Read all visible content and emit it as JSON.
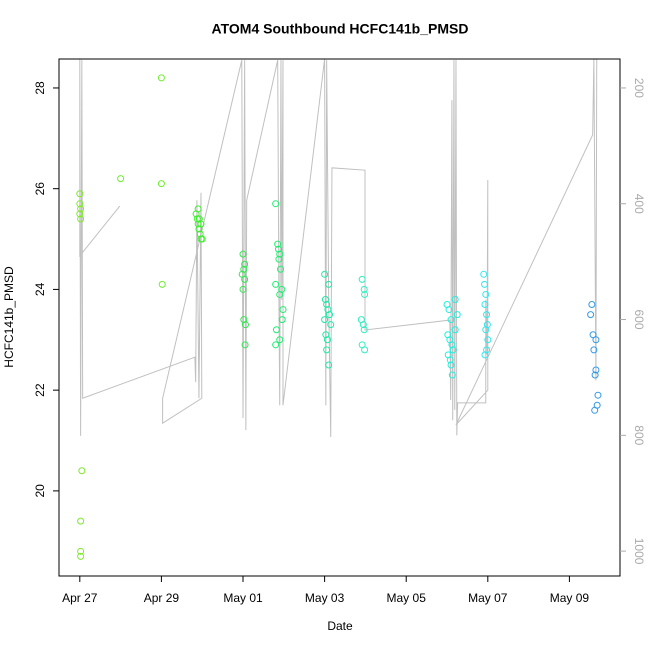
{
  "chart_data": {
    "type": "scatter",
    "title": "ATOM4 Southbound HCFC141b_PMSD",
    "x_label": "Date",
    "y_label": "HCFC141b_PMSD",
    "xlim": [
      26.49,
      40.24
    ],
    "ylim": [
      18.31,
      28.575
    ],
    "y2lim": [
      1043,
      150
    ],
    "xticks": [
      {
        "value": 27,
        "label": "Apr 27"
      },
      {
        "value": 29,
        "label": "Apr 29"
      },
      {
        "value": 31,
        "label": "May 01"
      },
      {
        "value": 33,
        "label": "May 03"
      },
      {
        "value": 35,
        "label": "May 05"
      },
      {
        "value": 37,
        "label": "May 07"
      },
      {
        "value": 39,
        "label": "May 09"
      }
    ],
    "yticks": [
      20,
      22,
      24,
      26,
      28
    ],
    "y2ticks": [
      200,
      400,
      600,
      800,
      1000
    ],
    "series": [
      {
        "color": "#80e830",
        "x": [
          27.0,
          27.0,
          27.02,
          27.0,
          27.02,
          27.05,
          27.02,
          27.02,
          27.02
        ],
        "values": [
          25.9,
          25.7,
          25.6,
          25.5,
          25.4,
          20.4,
          19.4,
          18.8,
          18.7
        ]
      },
      {
        "color": "#70ee30",
        "x": [
          28.0,
          29.0,
          29.0,
          29.02
        ],
        "values": [
          26.2,
          28.2,
          26.1,
          24.1
        ]
      },
      {
        "color": "#40ee30",
        "x": [
          29.85,
          29.88,
          29.9,
          29.92,
          29.95,
          29.97,
          29.9,
          29.93,
          29.97,
          30.0
        ],
        "values": [
          25.5,
          25.4,
          25.3,
          25.2,
          25.1,
          25.0,
          25.6,
          25.4,
          25.3,
          25.0
        ]
      },
      {
        "color": "#30e850",
        "x": [
          31.0,
          31.02,
          30.98,
          31.04,
          31.0,
          31.02,
          31.06,
          31.05,
          31.04
        ],
        "values": [
          24.7,
          24.4,
          24.3,
          24.2,
          24.0,
          23.4,
          23.3,
          22.9,
          24.5
        ]
      },
      {
        "color": "#20ee70",
        "x": [
          31.8,
          31.85,
          31.87,
          31.9,
          31.88,
          31.92,
          31.8,
          31.95,
          31.9,
          31.98,
          31.96,
          31.82,
          31.9,
          31.8
        ],
        "values": [
          25.7,
          24.9,
          24.8,
          24.7,
          24.6,
          24.4,
          24.1,
          24.0,
          23.9,
          23.6,
          23.4,
          23.2,
          23.0,
          22.9
        ]
      },
      {
        "color": "#20e8a8",
        "x": [
          33.0,
          33.1,
          33.02,
          33.05,
          33.08,
          33.12,
          33.0,
          33.15,
          33.03,
          33.07,
          33.05,
          33.1
        ],
        "values": [
          24.3,
          24.1,
          23.8,
          23.7,
          23.6,
          23.5,
          23.4,
          23.3,
          23.1,
          23.0,
          22.8,
          22.5
        ]
      },
      {
        "color": "#30eec0",
        "x": [
          33.92,
          33.97,
          33.98,
          33.9,
          33.95,
          33.97,
          33.92,
          33.98
        ],
        "values": [
          24.2,
          24.0,
          23.9,
          23.4,
          23.3,
          23.2,
          22.9,
          22.8
        ]
      },
      {
        "color": "#20f0e0",
        "x": [
          36.0,
          36.05,
          36.1,
          36.02,
          36.07,
          36.12,
          36.15,
          36.03,
          36.08,
          36.1,
          36.13,
          36.2,
          36.25,
          36.2
        ],
        "values": [
          23.7,
          23.6,
          23.4,
          23.1,
          23.0,
          22.9,
          22.8,
          22.7,
          22.6,
          22.5,
          22.3,
          23.8,
          23.5,
          23.2
        ]
      },
      {
        "color": "#30e8f0",
        "x": [
          36.9,
          36.92,
          36.95,
          36.93,
          36.97,
          36.99,
          36.95,
          37.0,
          36.97,
          36.93
        ],
        "values": [
          24.3,
          24.1,
          23.9,
          23.7,
          23.5,
          23.3,
          23.2,
          23.0,
          22.8,
          22.7
        ]
      },
      {
        "color": "#3399e8",
        "x": [
          39.55,
          39.52,
          39.58,
          39.65,
          39.6,
          39.65,
          39.63,
          39.7,
          39.68,
          39.62
        ],
        "values": [
          23.7,
          23.5,
          23.1,
          23.0,
          22.8,
          22.4,
          22.3,
          21.9,
          21.7,
          21.6
        ]
      },
      {
        "type": "line",
        "axis": "y2",
        "color": "#c0c0c0",
        "x": [
          27.98,
          27.0,
          27.0,
          27.02,
          27.05,
          27.07,
          29.82,
          29.84,
          29.87,
          29.92,
          29.97,
          29.99,
          29.03,
          29.03,
          30.97,
          31.0,
          31.04,
          31.07,
          31.09,
          31.85,
          31.88,
          31.9,
          31.93,
          31.95,
          31.98,
          31.98,
          33.0,
          33.03,
          33.05,
          33.1,
          33.15,
          33.18,
          33.99,
          33.99,
          36.07,
          36.09,
          36.12,
          36.14,
          36.17,
          36.19,
          36.22,
          36.24,
          36.26,
          36.95,
          36.95,
          36.98,
          37.0,
          37.0,
          36.22,
          39.57,
          39.6,
          39.65,
          39.67
        ],
        "values": [
          404,
          490,
          150,
          801,
          152,
          736,
          665,
          708,
          394,
          736,
          381,
          736,
          779,
          736,
          152,
          770,
          152,
          791,
          394,
          152,
          566,
          748,
          152,
          566,
          152,
          748,
          150,
          748,
          152,
          566,
          803,
          338,
          342,
          618,
          601,
          739,
          221,
          774,
          152,
          756,
          152,
          800,
          744,
          744,
          566,
          661,
          359,
          722,
          782,
          281,
          150,
          705,
          150
        ]
      }
    ]
  }
}
